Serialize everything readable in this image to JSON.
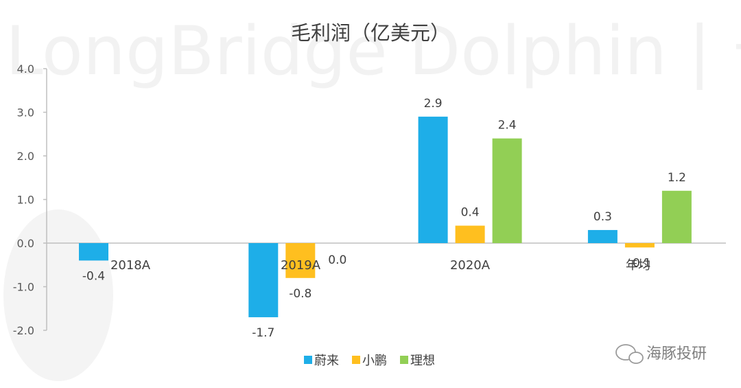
{
  "watermark": {
    "text": "LongBridge Dolphin | 长桥海豚投研",
    "wechat_label": "海豚投研"
  },
  "colors": {
    "nio": "#1eaee8",
    "xpeng": "#ffbf1f",
    "li": "#92cf55",
    "axis": "#bfbfbf",
    "text": "#404040"
  },
  "chart_data": {
    "type": "bar",
    "title": "毛利润（亿美元）",
    "categories": [
      "2018A",
      "2019A",
      "2020A",
      "年均"
    ],
    "series": [
      {
        "name": "蔚来",
        "values": [
          -0.4,
          -1.7,
          2.9,
          0.3
        ]
      },
      {
        "name": "小鹏",
        "values": [
          null,
          -0.8,
          0.4,
          -0.1
        ]
      },
      {
        "name": "理想",
        "values": [
          null,
          0.0,
          2.4,
          1.2
        ]
      }
    ],
    "ylim": [
      -2.0,
      4.0
    ],
    "yticks": [
      "4.0",
      "3.0",
      "2.0",
      "1.0",
      "0.0",
      "-1.0",
      "-2.0"
    ],
    "data_labels": [
      [
        "-0.4",
        "-1.7",
        "2.9",
        "0.3"
      ],
      [
        null,
        "-0.8",
        "0.4",
        "-0.1"
      ],
      [
        null,
        "0.0",
        "2.4",
        "1.2"
      ]
    ],
    "legend_position": "bottom",
    "grid": false
  }
}
